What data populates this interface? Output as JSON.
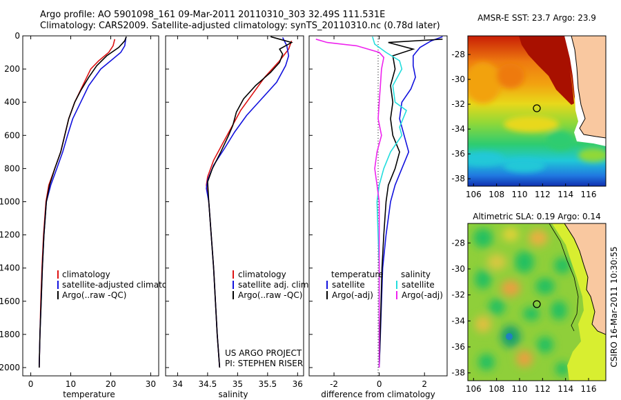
{
  "header": {
    "line1": "Argo profile: AO 5901098_161 09-Mar-2011 20110310_303 32.49S 111.531E",
    "line2": "Climatology: CARS2009. Satellite-adjusted climatology: synTS_20110310.nc (0.78d later)"
  },
  "colors": {
    "climatology": "#dd1111",
    "satellite": "#1111dd",
    "argo": "#000000",
    "sal_satellite": "#22dddd",
    "sal_argo": "#ee22ee",
    "land": "#f9c8a0"
  },
  "chart_data": [
    {
      "type": "line",
      "name": "temperature-panel",
      "xlabel": "temperature",
      "xlim": [
        -2,
        32
      ],
      "ylim": [
        0,
        2050
      ],
      "y_reversed": true,
      "xticks": [
        "0",
        "10",
        "20",
        "30"
      ],
      "yticks": [
        "0",
        "200",
        "400",
        "600",
        "800",
        "1000",
        "1200",
        "1400",
        "1600",
        "1800",
        "2000"
      ],
      "legend": {
        "position": "lower-right",
        "entries": [
          "climatology",
          "satellite-adjusted climatology",
          "Argo(..raw -QC)"
        ]
      },
      "series": [
        {
          "name": "climatology",
          "color": "#dd1111",
          "points": [
            [
              21,
              20
            ],
            [
              20.6,
              60
            ],
            [
              19.5,
              100
            ],
            [
              17,
              150
            ],
            [
              15,
              200
            ],
            [
              13,
              300
            ],
            [
              11,
              400
            ],
            [
              9.5,
              500
            ],
            [
              8.5,
              600
            ],
            [
              7.5,
              700
            ],
            [
              6,
              800
            ],
            [
              4.5,
              900
            ],
            [
              3.8,
              1000
            ],
            [
              3.2,
              1200
            ],
            [
              2.8,
              1400
            ],
            [
              2.5,
              1600
            ],
            [
              2.3,
              1800
            ],
            [
              2.1,
              2000
            ]
          ]
        },
        {
          "name": "satellite-adjusted climatology",
          "color": "#1111dd",
          "points": [
            [
              23.8,
              10
            ],
            [
              23.5,
              60
            ],
            [
              22.5,
              100
            ],
            [
              20,
              150
            ],
            [
              17.5,
              200
            ],
            [
              14.5,
              300
            ],
            [
              12.5,
              400
            ],
            [
              10.5,
              500
            ],
            [
              9.2,
              600
            ],
            [
              8,
              700
            ],
            [
              6.5,
              800
            ],
            [
              5,
              900
            ],
            [
              3.9,
              1000
            ],
            [
              3.3,
              1200
            ],
            [
              2.9,
              1400
            ],
            [
              2.6,
              1600
            ],
            [
              2.3,
              1800
            ],
            [
              2.1,
              2000
            ]
          ]
        },
        {
          "name": "Argo(..raw -QC)",
          "color": "#000000",
          "points": [
            [
              23.9,
              5
            ],
            [
              23.5,
              30
            ],
            [
              22,
              70
            ],
            [
              19,
              120
            ],
            [
              16.5,
              180
            ],
            [
              14.5,
              250
            ],
            [
              12.5,
              330
            ],
            [
              11,
              400
            ],
            [
              9.5,
              500
            ],
            [
              8.5,
              600
            ],
            [
              7.5,
              700
            ],
            [
              6,
              800
            ],
            [
              4.7,
              900
            ],
            [
              3.9,
              1000
            ],
            [
              3.3,
              1200
            ],
            [
              2.9,
              1400
            ],
            [
              2.6,
              1600
            ],
            [
              2.3,
              1800
            ],
            [
              2.1,
              2000
            ]
          ]
        }
      ]
    },
    {
      "type": "line",
      "name": "salinity-panel",
      "xlabel": "salinity",
      "xlim": [
        33.8,
        36.1
      ],
      "ylim": [
        0,
        2050
      ],
      "y_reversed": true,
      "xticks": [
        "34",
        "34.5",
        "35",
        "35.5",
        "36"
      ],
      "legend": {
        "position": "lower-right",
        "entries": [
          "climatology",
          "satellite adj. clim.",
          "Argo(..raw -QC)"
        ]
      },
      "annotations": [
        "US ARGO PROJECT",
        "PI: STEPHEN RISER"
      ],
      "series": [
        {
          "name": "climatology",
          "color": "#dd1111",
          "points": [
            [
              35.9,
              30
            ],
            [
              35.85,
              80
            ],
            [
              35.7,
              150
            ],
            [
              35.45,
              250
            ],
            [
              35.25,
              350
            ],
            [
              35.05,
              450
            ],
            [
              34.9,
              550
            ],
            [
              34.75,
              650
            ],
            [
              34.6,
              750
            ],
            [
              34.5,
              850
            ],
            [
              34.48,
              900
            ],
            [
              34.52,
              1000
            ],
            [
              34.56,
              1200
            ],
            [
              34.6,
              1400
            ],
            [
              34.63,
              1600
            ],
            [
              34.66,
              1800
            ],
            [
              34.7,
              2000
            ]
          ]
        },
        {
          "name": "satellite adj. clim.",
          "color": "#1111dd",
          "points": [
            [
              35.75,
              10
            ],
            [
              35.82,
              60
            ],
            [
              35.85,
              120
            ],
            [
              35.8,
              180
            ],
            [
              35.65,
              280
            ],
            [
              35.4,
              380
            ],
            [
              35.15,
              480
            ],
            [
              34.95,
              580
            ],
            [
              34.78,
              680
            ],
            [
              34.6,
              780
            ],
            [
              34.5,
              870
            ],
            [
              34.48,
              920
            ],
            [
              34.52,
              1000
            ],
            [
              34.56,
              1200
            ],
            [
              34.6,
              1400
            ],
            [
              34.63,
              1600
            ],
            [
              34.66,
              1800
            ],
            [
              34.7,
              2000
            ]
          ]
        },
        {
          "name": "Argo(..raw -QC)",
          "color": "#000000",
          "points": [
            [
              35.55,
              5
            ],
            [
              35.7,
              20
            ],
            [
              35.9,
              40
            ],
            [
              35.7,
              80
            ],
            [
              35.75,
              110
            ],
            [
              35.7,
              160
            ],
            [
              35.55,
              220
            ],
            [
              35.3,
              300
            ],
            [
              35.1,
              380
            ],
            [
              34.98,
              460
            ],
            [
              34.92,
              540
            ],
            [
              34.85,
              600
            ],
            [
              34.72,
              700
            ],
            [
              34.58,
              800
            ],
            [
              34.5,
              880
            ],
            [
              34.52,
              1000
            ],
            [
              34.56,
              1200
            ],
            [
              34.6,
              1400
            ],
            [
              34.63,
              1600
            ],
            [
              34.66,
              1800
            ],
            [
              34.7,
              2000
            ]
          ]
        }
      ]
    },
    {
      "type": "line",
      "name": "difference-panel",
      "xlabel": "difference from climatology",
      "xlim": [
        -3.1,
        3
      ],
      "ylim": [
        0,
        2050
      ],
      "y_reversed": true,
      "xticks": [
        "-2",
        "0",
        "2"
      ],
      "legend": {
        "position": "lower-right",
        "groups": [
          {
            "title": "temperature",
            "entries": [
              "satellite",
              "Argo(-adj)"
            ]
          },
          {
            "title": "salinity",
            "entries": [
              "satellite",
              "Argo(-adj)"
            ]
          }
        ]
      },
      "series": [
        {
          "name": "temperature satellite",
          "color": "#1111dd",
          "points": [
            [
              2.8,
              5
            ],
            [
              2.3,
              30
            ],
            [
              1.8,
              70
            ],
            [
              1.5,
              120
            ],
            [
              1.5,
              180
            ],
            [
              1.6,
              250
            ],
            [
              1.4,
              320
            ],
            [
              1,
              400
            ],
            [
              0.9,
              500
            ],
            [
              1.1,
              600
            ],
            [
              1.3,
              700
            ],
            [
              1,
              800
            ],
            [
              0.7,
              900
            ],
            [
              0.5,
              1000
            ],
            [
              0.3,
              1200
            ],
            [
              0.15,
              1400
            ],
            [
              0.1,
              1600
            ],
            [
              0.05,
              1800
            ],
            [
              0,
              2000
            ]
          ]
        },
        {
          "name": "temperature Argo(-adj)",
          "color": "#000000",
          "points": [
            [
              2.8,
              20
            ],
            [
              0.4,
              40
            ],
            [
              1.5,
              80
            ],
            [
              0.6,
              120
            ],
            [
              0.7,
              200
            ],
            [
              0.5,
              300
            ],
            [
              0.6,
              400
            ],
            [
              0.5,
              500
            ],
            [
              0.6,
              600
            ],
            [
              0.9,
              700
            ],
            [
              0.7,
              800
            ],
            [
              0.4,
              900
            ],
            [
              0.3,
              1000
            ],
            [
              0.2,
              1200
            ],
            [
              0.12,
              1400
            ],
            [
              0.08,
              1600
            ],
            [
              0.04,
              1800
            ],
            [
              0,
              2000
            ]
          ]
        },
        {
          "name": "salinity satellite",
          "color": "#22dddd",
          "points": [
            [
              -0.3,
              5
            ],
            [
              -0.2,
              50
            ],
            [
              0.3,
              100
            ],
            [
              0.9,
              150
            ],
            [
              1.0,
              200
            ],
            [
              0.6,
              300
            ],
            [
              0.7,
              400
            ],
            [
              1.2,
              450
            ],
            [
              0.9,
              550
            ],
            [
              1.0,
              600
            ],
            [
              0.5,
              700
            ],
            [
              0.2,
              800
            ],
            [
              0,
              900
            ],
            [
              -0.1,
              1000
            ],
            [
              -0.05,
              1200
            ],
            [
              0,
              1400
            ],
            [
              0,
              1600
            ],
            [
              0,
              1800
            ],
            [
              0,
              2000
            ]
          ]
        },
        {
          "name": "salinity Argo(-adj)",
          "color": "#ee22ee",
          "points": [
            [
              -2.8,
              20
            ],
            [
              -2.3,
              40
            ],
            [
              -1,
              60
            ],
            [
              0,
              100
            ],
            [
              0.2,
              130
            ],
            [
              0.1,
              200
            ],
            [
              0.05,
              300
            ],
            [
              0,
              400
            ],
            [
              -0.05,
              500
            ],
            [
              0.1,
              600
            ],
            [
              -0.1,
              700
            ],
            [
              -0.2,
              800
            ],
            [
              -0.1,
              900
            ],
            [
              0,
              1000
            ],
            [
              0,
              1200
            ],
            [
              0,
              1400
            ],
            [
              0,
              1600
            ],
            [
              0,
              1800
            ],
            [
              0,
              2000
            ]
          ]
        }
      ]
    },
    {
      "type": "heatmap",
      "name": "sst-map",
      "title": "AMSR-E SST: 23.7  Argo: 23.9",
      "xticks": [
        "106",
        "108",
        "110",
        "112",
        "114",
        "116"
      ],
      "yticks": [
        "-28",
        "-30",
        "-32",
        "-34",
        "-36",
        "-38"
      ],
      "xlim": [
        105.5,
        117.5
      ],
      "ylim": [
        -38.6,
        -26.5
      ],
      "argo_position": [
        111.53,
        -32.49
      ]
    },
    {
      "type": "heatmap",
      "name": "sla-map",
      "title": "Altimetric SLA: 0.19  Argo: 0.14",
      "xticks": [
        "106",
        "108",
        "110",
        "112",
        "114",
        "116"
      ],
      "yticks": [
        "-28",
        "-30",
        "-32",
        "-34",
        "-36",
        "-38"
      ],
      "xlim": [
        105.5,
        117.5
      ],
      "ylim": [
        -38.6,
        -26.5
      ],
      "argo_position": [
        111.53,
        -32.49
      ]
    }
  ],
  "side_label": "CSIRO 16-Mar-2011 10:30:55"
}
